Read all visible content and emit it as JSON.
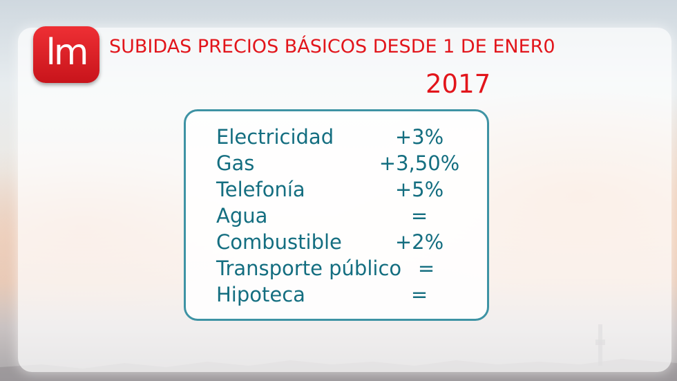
{
  "logo": {
    "text": "lm",
    "icon": "lm-brand-logo",
    "color": "#e2151b"
  },
  "header": {
    "title": "SUBIDAS PRECIOS BÁSICOS DESDE 1 DE ENER0",
    "year": "2017"
  },
  "colors": {
    "accent": "#e2151b",
    "table_text": "#146e80",
    "table_border": "#3e93a4"
  },
  "table": {
    "rows": [
      {
        "name": "Electricidad",
        "value": "+3%"
      },
      {
        "name": "Gas",
        "value": "+3,50%"
      },
      {
        "name": "Telefonía",
        "value": "+5%"
      },
      {
        "name": "Agua",
        "value": "="
      },
      {
        "name": "Combustible",
        "value": "+2%"
      },
      {
        "name": "Transporte público",
        "value": "="
      },
      {
        "name": "Hipoteca",
        "value": "="
      }
    ]
  }
}
